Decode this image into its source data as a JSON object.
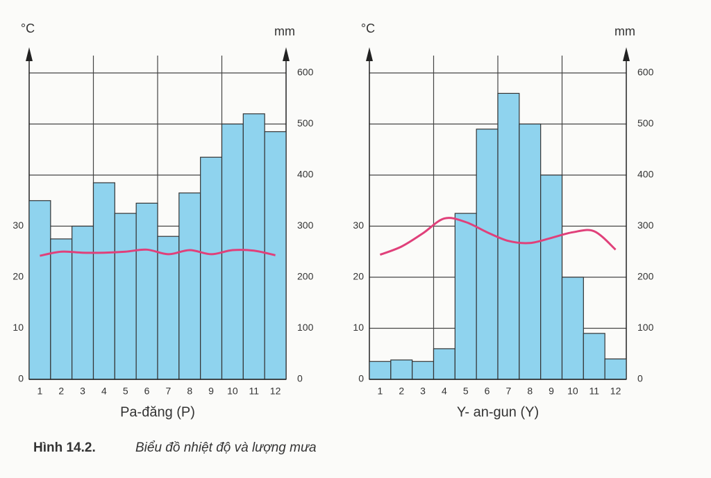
{
  "chart_data": [
    {
      "type": "bar",
      "title": "Pa-đăng (P)",
      "ylabel": "°C",
      "y2label": "mm",
      "categories": [
        "1",
        "2",
        "3",
        "4",
        "5",
        "6",
        "7",
        "8",
        "9",
        "10",
        "11",
        "12"
      ],
      "series": [
        {
          "type": "bar",
          "axis": "y2",
          "color": "#8fd3ee",
          "values": [
            350,
            275,
            300,
            385,
            325,
            345,
            280,
            365,
            435,
            500,
            520,
            485
          ]
        },
        {
          "type": "line",
          "color": "#e0407a",
          "values": [
            24.2,
            25,
            24.8,
            24.8,
            25,
            25.4,
            24.5,
            25.3,
            24.5,
            25.3,
            25.2,
            24.3
          ]
        }
      ],
      "ylim": [
        0,
        60
      ],
      "yticks": [
        0,
        10,
        20,
        30
      ],
      "y2lim": [
        0,
        600
      ],
      "y2ticks": [
        0,
        100,
        200,
        300,
        400,
        500,
        600
      ],
      "grid": true
    },
    {
      "type": "bar",
      "title": "Y- an-gun (Y)",
      "ylabel": "°C",
      "y2label": "mm",
      "categories": [
        "1",
        "2",
        "3",
        "4",
        "5",
        "6",
        "7",
        "8",
        "9",
        "10",
        "11",
        "12"
      ],
      "series": [
        {
          "type": "bar",
          "axis": "y2",
          "color": "#8fd3ee",
          "values": [
            35,
            38,
            35,
            60,
            325,
            490,
            560,
            500,
            400,
            200,
            90,
            40
          ]
        },
        {
          "type": "line",
          "color": "#e0407a",
          "values": [
            24.4,
            26,
            28.6,
            31.5,
            30.8,
            28.8,
            27.1,
            26.7,
            27.7,
            28.8,
            29,
            25.4
          ]
        }
      ],
      "ylim": [
        0,
        60
      ],
      "yticks": [
        0,
        10,
        20,
        30
      ],
      "y2lim": [
        0,
        600
      ],
      "y2ticks": [
        0,
        100,
        200,
        300,
        400,
        500,
        600
      ],
      "grid": true
    }
  ],
  "caption": {
    "label": "Hình 14.2.",
    "text": "Biểu đồ nhiệt độ và lượng mưa"
  }
}
